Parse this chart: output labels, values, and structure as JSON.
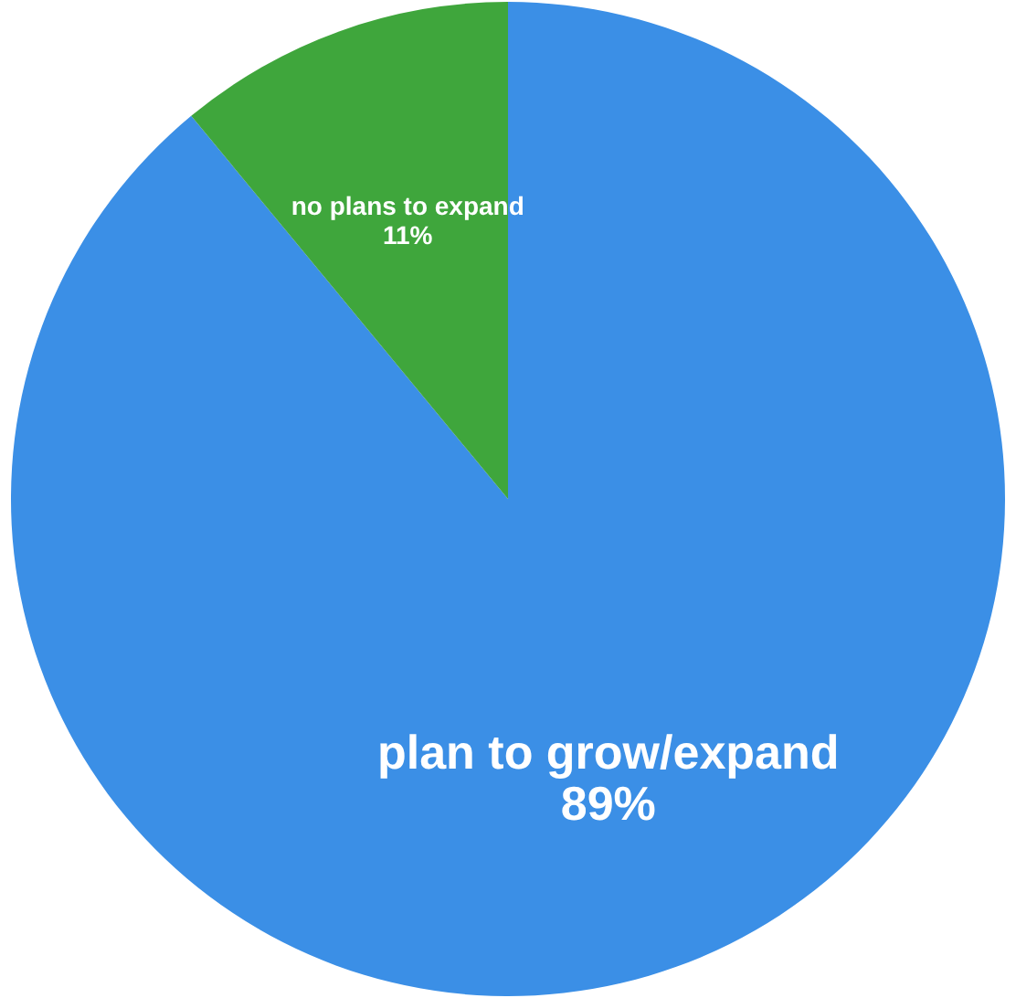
{
  "chart_data": {
    "type": "pie",
    "categories": [
      "plan to grow/expand",
      "no plans to expand"
    ],
    "values": [
      89,
      11
    ],
    "colors": [
      "#3b8fe6",
      "#3fa63c"
    ],
    "value_labels": [
      "89%",
      "11%"
    ]
  }
}
